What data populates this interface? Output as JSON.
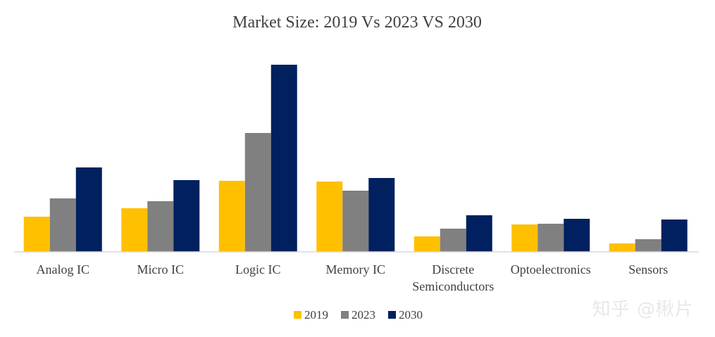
{
  "chart_data": {
    "type": "bar",
    "title": "Market Size: 2019 Vs 2023 VS 2030",
    "categories": [
      [
        "Analog IC"
      ],
      [
        "Micro IC"
      ],
      [
        "Logic IC"
      ],
      [
        "Memory IC"
      ],
      [
        "Discrete",
        "Semiconductors"
      ],
      [
        "Optoelectronics"
      ],
      [
        "Sensors"
      ]
    ],
    "series": [
      {
        "name": "2019",
        "color": "#FFC000",
        "values": [
          50,
          62,
          101,
          100,
          22,
          39,
          12
        ]
      },
      {
        "name": "2023",
        "color": "#808080",
        "values": [
          76,
          72,
          169,
          87,
          33,
          40,
          18
        ]
      },
      {
        "name": "2030",
        "color": "#002060",
        "values": [
          120,
          102,
          266,
          105,
          52,
          47,
          46
        ]
      }
    ],
    "xlabel": "",
    "ylabel": "",
    "ylim": [
      0,
      266
    ],
    "grid": false,
    "legend": "bottom-center"
  },
  "watermark": "知乎 @楸片"
}
